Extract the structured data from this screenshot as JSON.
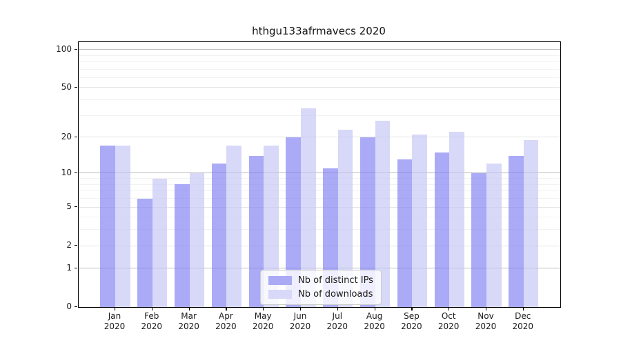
{
  "chart_data": {
    "type": "bar",
    "title": "hthgu133afrmavecs 2020",
    "categories": [
      "Jan",
      "Feb",
      "Mar",
      "Apr",
      "May",
      "Jun",
      "Jul",
      "Aug",
      "Sep",
      "Oct",
      "Nov",
      "Dec"
    ],
    "category_year": "2020",
    "series": [
      {
        "name": "Nb of distinct IPs",
        "color": "#aaaaf5",
        "bar_fill": "rgba(124,124,243,0.65)",
        "values": [
          17,
          6,
          8,
          12,
          14,
          20,
          11,
          20,
          13,
          15,
          10,
          14
        ]
      },
      {
        "name": "Nb of downloads",
        "color": "#d8d8f8",
        "bar_fill": "rgba(195,195,244,0.65)",
        "values": [
          17,
          9,
          10,
          17,
          17,
          34,
          23,
          27,
          21,
          22,
          12,
          19
        ]
      }
    ],
    "yscale": "log10(1+x)",
    "ylim": [
      0,
      100
    ],
    "yticks": [
      100,
      50,
      20,
      10,
      5,
      2,
      1,
      0
    ],
    "gridlines": {
      "major": [
        1,
        10,
        100
      ],
      "mid": [
        2,
        5,
        20,
        50
      ],
      "minor": [
        3,
        4,
        6,
        7,
        8,
        9,
        30,
        40,
        60,
        70,
        80,
        90
      ]
    },
    "grid_colors": {
      "major": "#bbbbbb",
      "mid": "#e4e4e4",
      "minor": "#f2f2f2"
    },
    "grid": "on",
    "legend_position": "lower center"
  }
}
